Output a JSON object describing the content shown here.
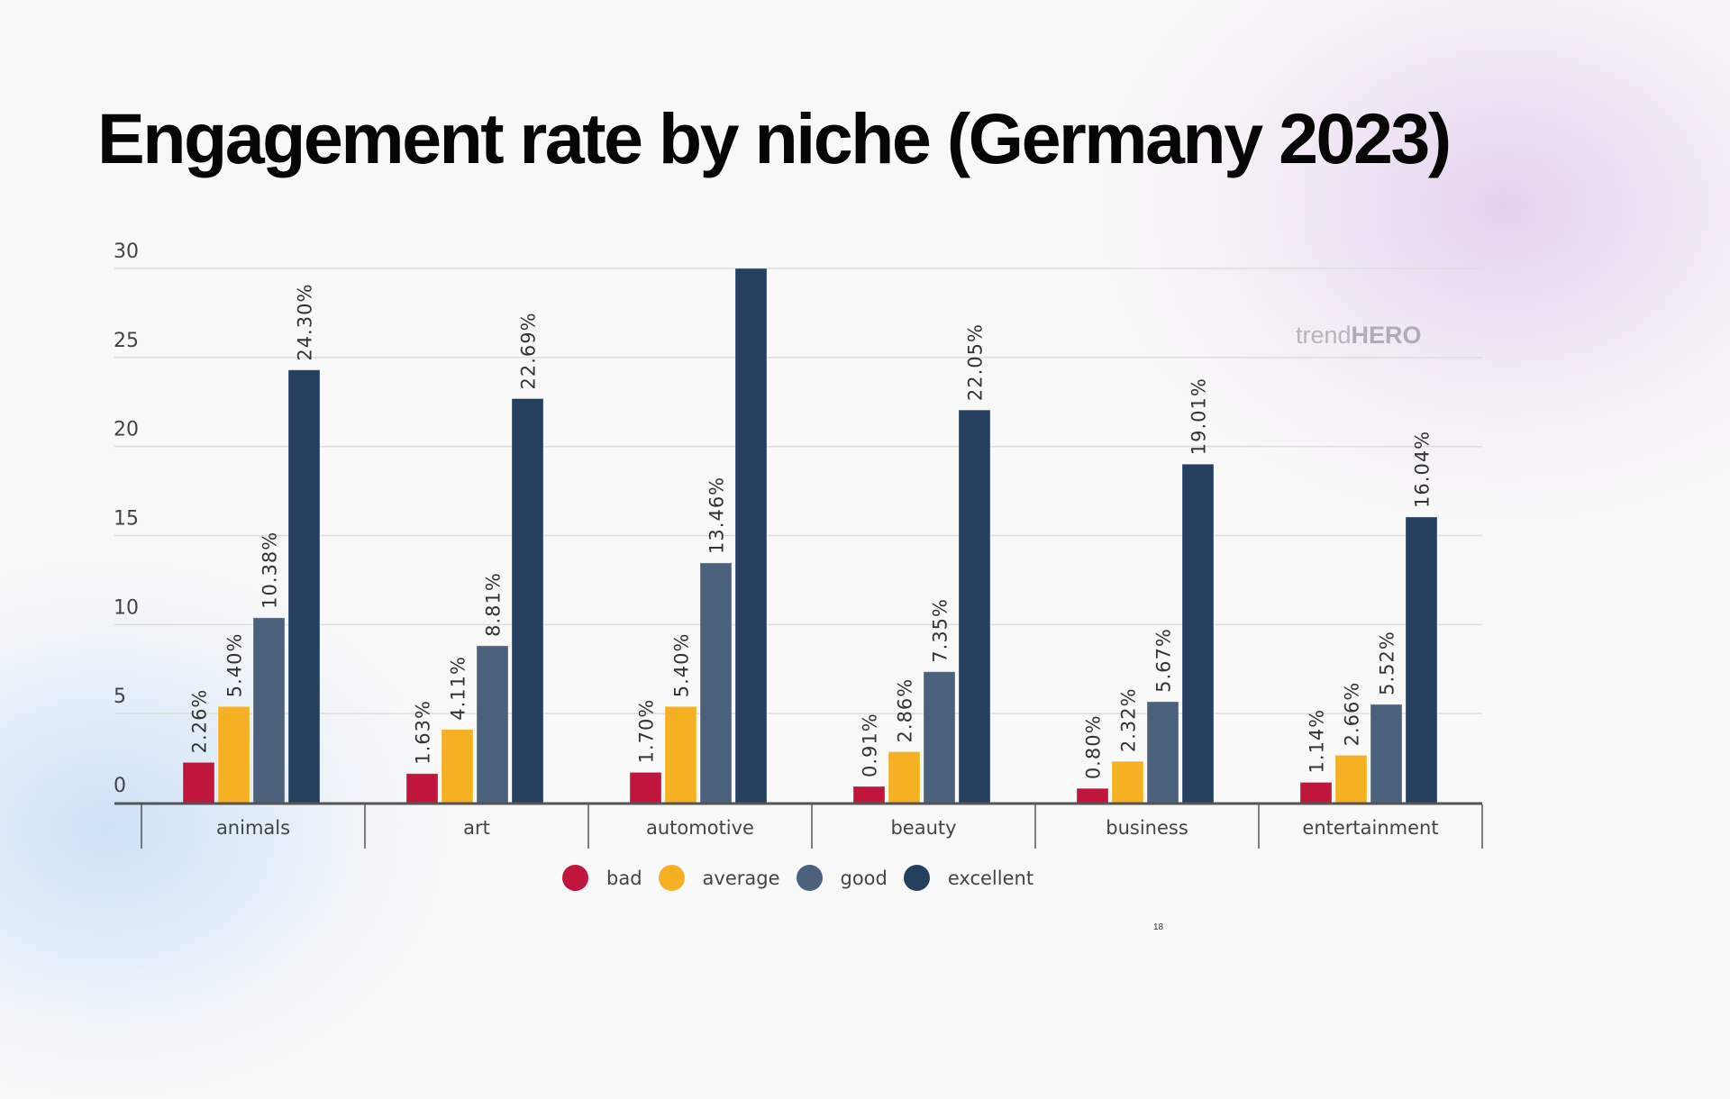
{
  "slide": {
    "title": "Engagement rate by niche (Germany 2023)",
    "page_number": "18",
    "watermark": {
      "light": "trend",
      "bold": "HERO"
    }
  },
  "colors": {
    "bad": "#c0163e",
    "average": "#f5b024",
    "good": "#4b617c",
    "excellent": "#25405f",
    "grid": "#dddddd",
    "axis": "#555555",
    "label": "#333333"
  },
  "legend": [
    {
      "key": "bad",
      "label": "bad"
    },
    {
      "key": "average",
      "label": "average"
    },
    {
      "key": "good",
      "label": "good"
    },
    {
      "key": "excellent",
      "label": "excellent"
    }
  ],
  "chart_data": {
    "type": "bar",
    "title": "Engagement rate by niche (Germany 2023)",
    "xlabel": "",
    "ylabel": "",
    "ylim": [
      0,
      30
    ],
    "yticks": [
      0,
      5,
      10,
      15,
      20,
      25,
      30
    ],
    "grid": true,
    "legend_position": "bottom-center",
    "categories": [
      "animals",
      "art",
      "automotive",
      "beauty",
      "business",
      "entertainment"
    ],
    "series": [
      {
        "name": "bad",
        "values": [
          2.26,
          1.63,
          1.7,
          0.91,
          0.8,
          1.14
        ],
        "labels": [
          "2.26%",
          "1.63%",
          "1.70%",
          "0.91%",
          "0.80%",
          "1.14%"
        ]
      },
      {
        "name": "average",
        "values": [
          5.4,
          4.11,
          5.4,
          2.86,
          2.32,
          2.66
        ],
        "labels": [
          "5.40%",
          "4.11%",
          "5.40%",
          "2.86%",
          "2.32%",
          "2.66%"
        ]
      },
      {
        "name": "good",
        "values": [
          10.38,
          8.81,
          13.46,
          7.35,
          5.67,
          5.52
        ],
        "labels": [
          "10.38%",
          "8.81%",
          "13.46%",
          "7.35%",
          "5.67%",
          "5.52%"
        ]
      },
      {
        "name": "excellent",
        "values": [
          24.3,
          22.69,
          30,
          22.05,
          19.01,
          16.04
        ],
        "labels": [
          "24.30%",
          "22.69%",
          "",
          "22.05%",
          "19.01%",
          "16.04%"
        ]
      }
    ],
    "notes": "automotive/excellent bar exceeds the axis maximum (clipped at 30); its data label is not visible"
  }
}
